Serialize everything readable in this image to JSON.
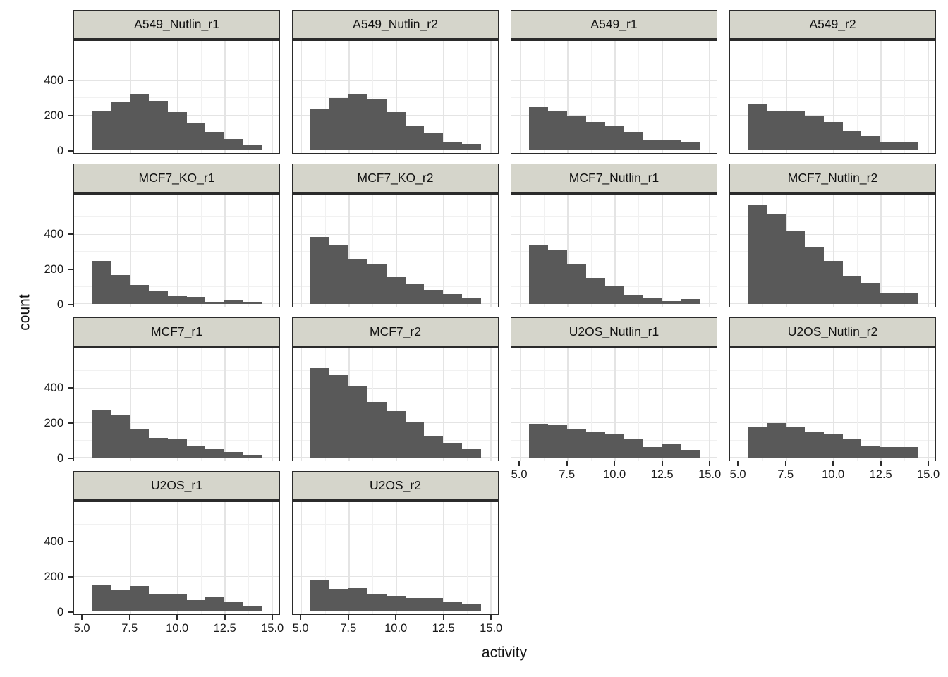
{
  "figure": {
    "x_axis_title": "activity",
    "y_axis_title": "count"
  },
  "chart_data": {
    "type": "bar",
    "subtype": "faceted_histogram",
    "title": "",
    "xlabel": "activity",
    "ylabel": "count",
    "grid": "on",
    "legend": "none",
    "facet_columns": 4,
    "bin_start": 5.5,
    "bin_width": 1,
    "n_bins": 9,
    "bin_left_edges": [
      5.5,
      6.5,
      7.5,
      8.5,
      9.5,
      10.5,
      11.5,
      12.5,
      13.5
    ],
    "xlim": [
      4.55,
      15.4
    ],
    "ylim": [
      0,
      630
    ],
    "x_ticks": [
      5.0,
      7.5,
      10.0,
      12.5,
      15.0
    ],
    "x_tick_labels": [
      "5.0",
      "7.5",
      "10.0",
      "12.5",
      "15.0"
    ],
    "x_minor_ticks": [
      6.25,
      8.75,
      11.25,
      13.75
    ],
    "y_ticks": [
      0,
      200,
      400
    ],
    "y_tick_labels": [
      "0",
      "200",
      "400"
    ],
    "y_minor_ticks": [
      100,
      300,
      500
    ],
    "facets": [
      {
        "label": "A549_Nutlin_r1",
        "values": [
          230,
          280,
          322,
          287,
          220,
          155,
          106,
          64,
          35
        ]
      },
      {
        "label": "A549_Nutlin_r2",
        "values": [
          242,
          303,
          328,
          298,
          222,
          145,
          100,
          48,
          38
        ]
      },
      {
        "label": "A549_r1",
        "values": [
          250,
          225,
          200,
          165,
          140,
          105,
          60,
          62,
          50
        ]
      },
      {
        "label": "A549_r2",
        "values": [
          265,
          223,
          229,
          200,
          165,
          110,
          83,
          45,
          45
        ]
      },
      {
        "label": "MCF7_KO_r1",
        "values": [
          248,
          166,
          112,
          78,
          45,
          42,
          14,
          22,
          12
        ]
      },
      {
        "label": "MCF7_KO_r2",
        "values": [
          387,
          340,
          260,
          229,
          156,
          116,
          83,
          56,
          33
        ]
      },
      {
        "label": "MCF7_Nutlin_r1",
        "values": [
          340,
          315,
          228,
          152,
          105,
          52,
          38,
          15,
          30
        ]
      },
      {
        "label": "MCF7_Nutlin_r2",
        "values": [
          573,
          520,
          423,
          332,
          249,
          165,
          119,
          60,
          67
        ]
      },
      {
        "label": "MCF7_r1",
        "values": [
          275,
          248,
          165,
          115,
          105,
          65,
          50,
          35,
          18
        ]
      },
      {
        "label": "MCF7_r2",
        "values": [
          520,
          478,
          418,
          323,
          268,
          203,
          128,
          84,
          54
        ]
      },
      {
        "label": "U2OS_Nutlin_r1",
        "values": [
          196,
          187,
          169,
          153,
          140,
          111,
          60,
          76,
          44
        ]
      },
      {
        "label": "U2OS_Nutlin_r2",
        "values": [
          178,
          200,
          179,
          152,
          140,
          112,
          68,
          63,
          63
        ]
      },
      {
        "label": "U2OS_r1",
        "values": [
          150,
          125,
          147,
          98,
          103,
          64,
          80,
          55,
          33
        ]
      },
      {
        "label": "U2OS_r2",
        "values": [
          178,
          129,
          133,
          99,
          92,
          76,
          76,
          59,
          40
        ]
      }
    ]
  },
  "colors": {
    "bar_fill": "#595959",
    "strip_background": "#d5d5cb",
    "panel_background": "#ffffff",
    "panel_border": "#2b2b2b",
    "grid_major": "#e4e4e4",
    "grid_minor": "#f1f1f1",
    "text": "#1a1a1a"
  }
}
